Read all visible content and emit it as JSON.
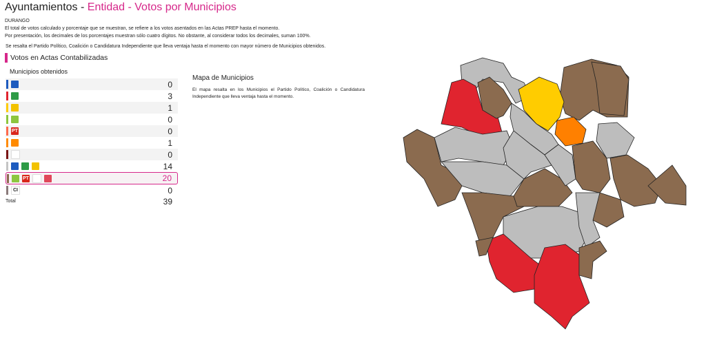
{
  "header": {
    "title_prefix": "Ayuntamientos - ",
    "title_highlight": "Entidad - Votos por Municipios"
  },
  "entity": "DURANGO",
  "notes": [
    "El total de votos calculado y porcentaje que se muestran, se refiere a los votos asentados en las Actas PREP hasta el momento.",
    "Por presentación, los decimales de los porcentajes muestran sólo cuatro dígitos. No obstante, al considerar todos los decimales, suman 100%."
  ],
  "highlight_note": "Se resalta el Partido Político, Coalición o Candidatura Independiente que lleva ventaja hasta el momento con mayor número de Municipios obtenidos.",
  "section_title": "Votos en Actas Contabilizadas",
  "municipios_label": "Municipios obtenidos",
  "rows": [
    {
      "color": "#1d5bbf",
      "logos": [
        {
          "icon": "pan-logo",
          "bg": "#1d5bbf",
          "text": ""
        }
      ],
      "value": "0"
    },
    {
      "color": "#e0242f",
      "logos": [
        {
          "icon": "pri-logo",
          "bg": "#2e9b46",
          "text": ""
        }
      ],
      "value": "3"
    },
    {
      "color": "#ffcc00",
      "logos": [
        {
          "icon": "prd-logo",
          "bg": "#f2c200",
          "text": ""
        }
      ],
      "value": "1"
    },
    {
      "color": "#8dc63f",
      "logos": [
        {
          "icon": "pvem-logo",
          "bg": "#8dc63f",
          "text": ""
        }
      ],
      "value": "0"
    },
    {
      "color": "#ff6a4d",
      "logos": [
        {
          "icon": "pt-logo",
          "bg": "#d9261c",
          "text": "PT"
        }
      ],
      "value": "0"
    },
    {
      "color": "#ff8a00",
      "logos": [
        {
          "icon": "mc-logo",
          "bg": "#ff8a00",
          "text": ""
        }
      ],
      "value": "1"
    },
    {
      "color": "#7a1414",
      "logos": [
        {
          "icon": "morena-logo",
          "bg": "#ffffff",
          "text": ""
        }
      ],
      "value": "0"
    },
    {
      "color": "#c4c4c4",
      "logos": [
        {
          "icon": "pan-logo",
          "bg": "#1d5bbf",
          "text": ""
        },
        {
          "icon": "pri-logo",
          "bg": "#2e9b46",
          "text": ""
        },
        {
          "icon": "prd-logo",
          "bg": "#f2c200",
          "text": ""
        }
      ],
      "value": "14"
    },
    {
      "color": "#8b6b4f",
      "logos": [
        {
          "icon": "pvem-logo",
          "bg": "#8dc63f",
          "text": ""
        },
        {
          "icon": "pt-logo",
          "bg": "#d9261c",
          "text": "PT"
        },
        {
          "icon": "morena-logo",
          "bg": "#ffffff",
          "text": ""
        },
        {
          "icon": "local-party-logo",
          "bg": "#e0475a",
          "text": ""
        }
      ],
      "value": "20",
      "winner": true
    },
    {
      "color": "#8a7a7a",
      "logos": [
        {
          "icon": "ci-logo",
          "bg": "#ffffff",
          "text": "CI"
        }
      ],
      "value": "0"
    }
  ],
  "total_label": "Total",
  "total_value": "39",
  "map": {
    "title": "Mapa de Municipios",
    "description": "El mapa resalta en los Municipios el Partido Político, Coalición o Candidatura Independiente que lleva ventaja hasta el momento.",
    "colors": {
      "brown": "#8b6b4f",
      "gray": "#bdbdbd",
      "red": "#e0242f",
      "yellow": "#ffcc00",
      "orange": "#ff8000"
    }
  }
}
